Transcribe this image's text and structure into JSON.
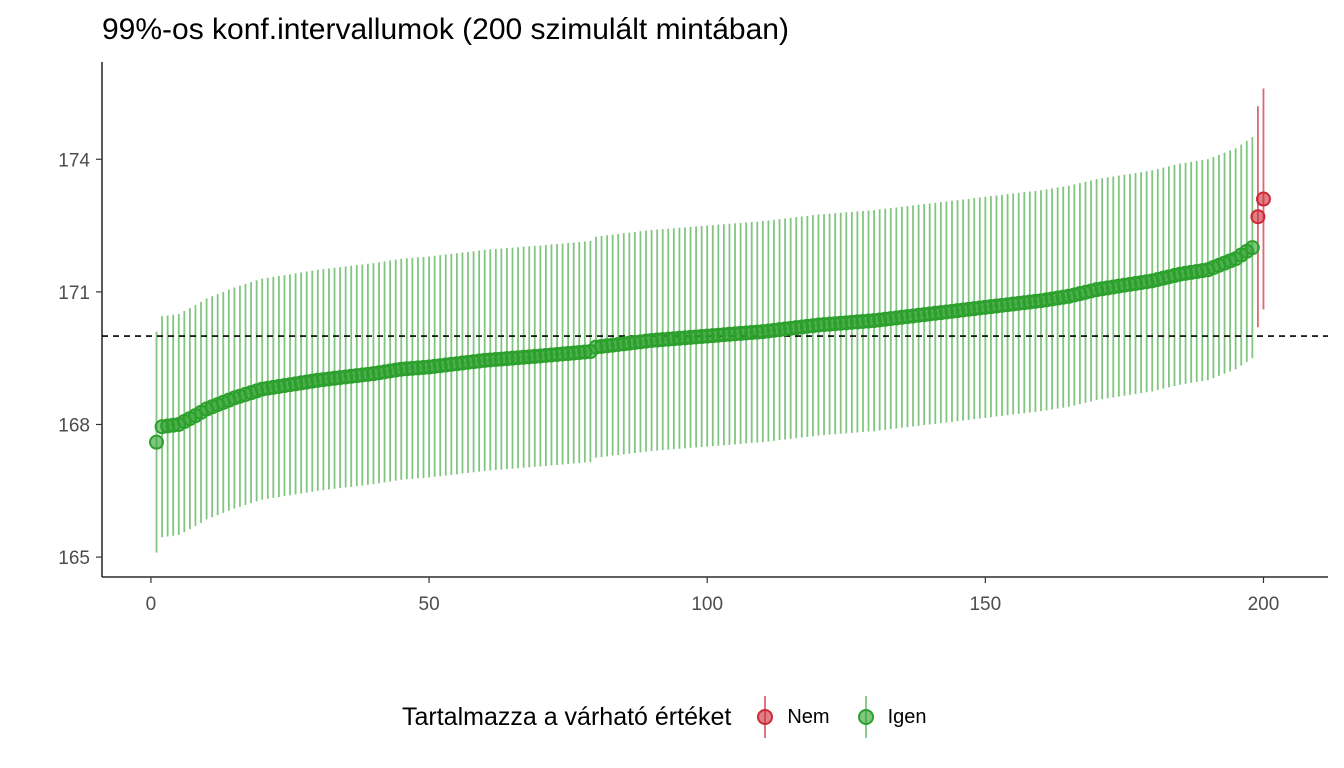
{
  "chart_data": {
    "type": "errorbar-scatter",
    "title": "99%-os konf.intervallumok (200 szimulált mintában)",
    "xlabel": "",
    "ylabel": "",
    "xlim": [
      -8.8,
      211.6
    ],
    "ylim": [
      164.55,
      176.2
    ],
    "x_ticks": [
      0,
      50,
      100,
      150,
      200
    ],
    "y_ticks": [
      165,
      168,
      171,
      174
    ],
    "reference_line": {
      "y": 170.0,
      "style": "dashed",
      "color": "#000000"
    },
    "half_width_ci": 2.5,
    "legend": {
      "title": "Tartalmazza a várható értéket",
      "position": "bottom",
      "entries": [
        {
          "label": "Nem",
          "color": "#cc2a36"
        },
        {
          "label": "Igen",
          "color": "#2ca02c"
        }
      ]
    },
    "series": [
      {
        "name": "Igen",
        "color": "#2ca02c",
        "x_range": [
          1,
          198
        ],
        "mean_profile": {
          "x": [
            1,
            2,
            5,
            8,
            10,
            15,
            20,
            25,
            30,
            40,
            45,
            50,
            60,
            70,
            79,
            80,
            90,
            100,
            110,
            120,
            130,
            140,
            150,
            160,
            165,
            170,
            180,
            185,
            190,
            195,
            198
          ],
          "y": [
            167.6,
            167.95,
            168.0,
            168.2,
            168.35,
            168.6,
            168.8,
            168.9,
            169.0,
            169.15,
            169.25,
            169.3,
            169.45,
            169.55,
            169.65,
            169.75,
            169.9,
            170.0,
            170.1,
            170.25,
            170.35,
            170.5,
            170.65,
            170.8,
            170.9,
            171.05,
            171.25,
            171.4,
            171.5,
            171.75,
            172.0
          ]
        }
      },
      {
        "name": "Nem",
        "color": "#cc2a36",
        "x": [
          199,
          200
        ],
        "y": [
          172.7,
          173.1
        ]
      }
    ]
  }
}
